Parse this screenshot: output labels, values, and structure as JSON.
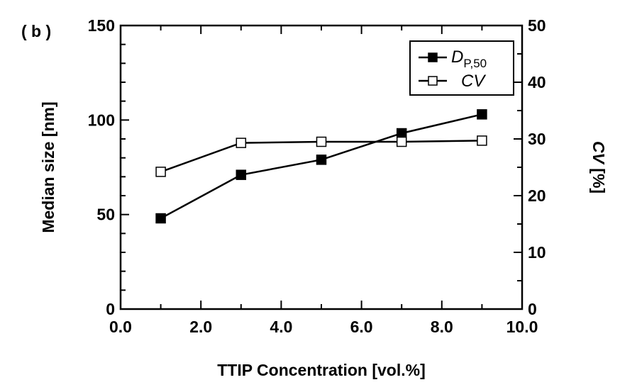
{
  "chart_data": {
    "type": "line",
    "panel_label": "( b )",
    "xlabel": "TTIP Concentration  [vol.%]",
    "ylabel_left": "Median size  [nm]",
    "ylabel_right_var": "CV",
    "ylabel_right_unit": " [%]",
    "xlim": [
      0.0,
      10.0
    ],
    "ylim_left": [
      0,
      150
    ],
    "ylim_right": [
      0,
      50
    ],
    "x_ticks": [
      "0.0",
      "2.0",
      "4.0",
      "6.0",
      "8.0",
      "10.0"
    ],
    "y_left_ticks": [
      "0",
      "50",
      "100",
      "150"
    ],
    "y_right_ticks": [
      "0",
      "10",
      "20",
      "30",
      "40",
      "50"
    ],
    "legend_position": "top-right",
    "series": [
      {
        "name_main": "D",
        "name_sub": "P,50",
        "axis": "left",
        "marker": "filled-square",
        "x": [
          1,
          3,
          5,
          7,
          9
        ],
        "y": [
          48,
          71,
          79,
          93,
          103
        ]
      },
      {
        "name_main": "CV",
        "name_sub": "",
        "axis": "right",
        "marker": "open-square",
        "x": [
          1,
          3,
          5,
          7,
          9
        ],
        "y": [
          24.2,
          29.3,
          29.5,
          29.5,
          29.7
        ]
      }
    ]
  }
}
